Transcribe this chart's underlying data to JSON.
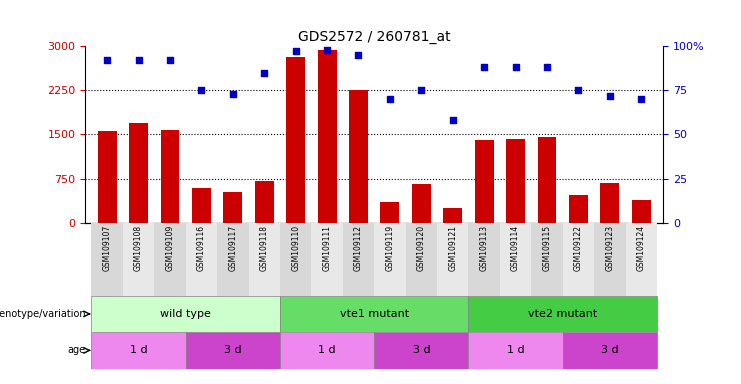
{
  "title": "GDS2572 / 260781_at",
  "samples": [
    "GSM109107",
    "GSM109108",
    "GSM109109",
    "GSM109116",
    "GSM109117",
    "GSM109118",
    "GSM109110",
    "GSM109111",
    "GSM109112",
    "GSM109119",
    "GSM109120",
    "GSM109121",
    "GSM109113",
    "GSM109114",
    "GSM109115",
    "GSM109122",
    "GSM109123",
    "GSM109124"
  ],
  "counts": [
    1560,
    1700,
    1580,
    590,
    530,
    710,
    2820,
    2930,
    2250,
    350,
    650,
    250,
    1410,
    1430,
    1460,
    470,
    680,
    380
  ],
  "percentile": [
    92,
    92,
    92,
    75,
    73,
    85,
    97,
    98,
    95,
    70,
    75,
    58,
    88,
    88,
    88,
    75,
    72,
    70
  ],
  "ylim_left": [
    0,
    3000
  ],
  "ylim_right": [
    0,
    100
  ],
  "yticks_left": [
    0,
    750,
    1500,
    2250,
    3000
  ],
  "yticks_right": [
    0,
    25,
    50,
    75,
    100
  ],
  "bar_color": "#cc0000",
  "scatter_color": "#0000cc",
  "background_color": "#ffffff",
  "genotype_groups": [
    {
      "label": "wild type",
      "start": 0,
      "end": 6,
      "color": "#ccffcc"
    },
    {
      "label": "vte1 mutant",
      "start": 6,
      "end": 12,
      "color": "#66dd66"
    },
    {
      "label": "vte2 mutant",
      "start": 12,
      "end": 18,
      "color": "#44cc44"
    }
  ],
  "age_groups": [
    {
      "label": "1 d",
      "start": 0,
      "end": 3,
      "color": "#ee88ee"
    },
    {
      "label": "3 d",
      "start": 3,
      "end": 6,
      "color": "#cc44cc"
    },
    {
      "label": "1 d",
      "start": 6,
      "end": 9,
      "color": "#ee88ee"
    },
    {
      "label": "3 d",
      "start": 9,
      "end": 12,
      "color": "#cc44cc"
    },
    {
      "label": "1 d",
      "start": 12,
      "end": 15,
      "color": "#ee88ee"
    },
    {
      "label": "3 d",
      "start": 15,
      "end": 18,
      "color": "#cc44cc"
    }
  ],
  "legend_count_color": "#cc0000",
  "legend_pct_color": "#0000cc",
  "genotype_label": "genotype/variation",
  "age_label": "age",
  "tick_bg_even": "#d8d8d8",
  "tick_bg_odd": "#e8e8e8"
}
